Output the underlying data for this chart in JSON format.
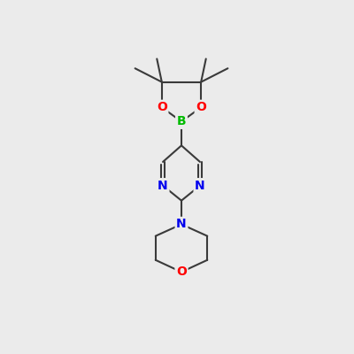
{
  "background_color": "#ebebeb",
  "bond_color": "#3a3a3a",
  "bond_width": 1.5,
  "atom_colors": {
    "B": "#00bb00",
    "O": "#ff0000",
    "N": "#0000ee",
    "C": "#3a3a3a"
  },
  "font_size_atom": 10,
  "figsize": [
    4.0,
    4.0
  ],
  "dpi": 100
}
